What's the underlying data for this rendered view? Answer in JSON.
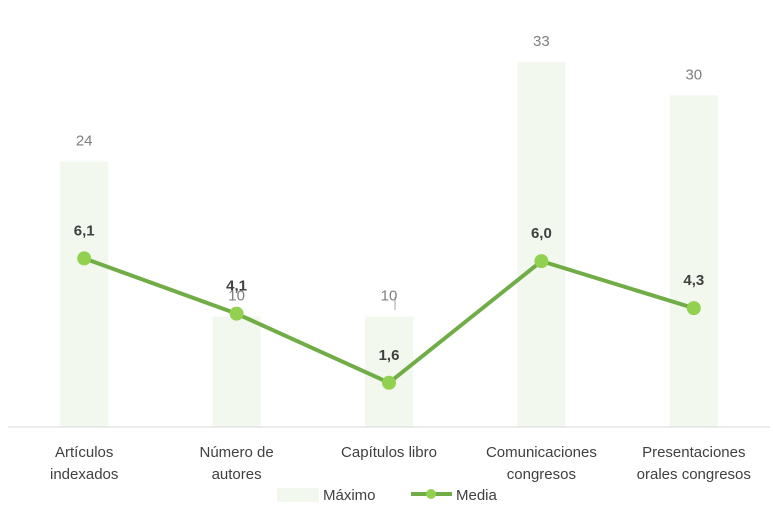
{
  "chart_data": {
    "type": "bar",
    "categories": [
      [
        "Artículos",
        "indexados"
      ],
      [
        "Número de",
        "autores"
      ],
      [
        "Capítulos libro"
      ],
      [
        "Comunicaciones",
        "congresos"
      ],
      [
        "Presentaciones",
        "orales congresos"
      ]
    ],
    "series": [
      {
        "name": "Máximo",
        "type": "bar",
        "values": [
          24,
          10,
          10,
          33,
          30
        ],
        "labels": [
          "24",
          "10",
          "10",
          "33",
          "30"
        ],
        "color": "#f2f8ee"
      },
      {
        "name": "Media",
        "type": "line",
        "values": [
          6.1,
          4.1,
          1.6,
          6.0,
          4.3
        ],
        "labels": [
          "6,1",
          "4,1",
          "1,6",
          "6,0",
          "4,3"
        ],
        "color": "#70ad47"
      }
    ],
    "bar_ylim": [
      0,
      35
    ],
    "line_ylim": [
      0,
      14
    ],
    "legend_position": "bottom",
    "grid": false
  }
}
